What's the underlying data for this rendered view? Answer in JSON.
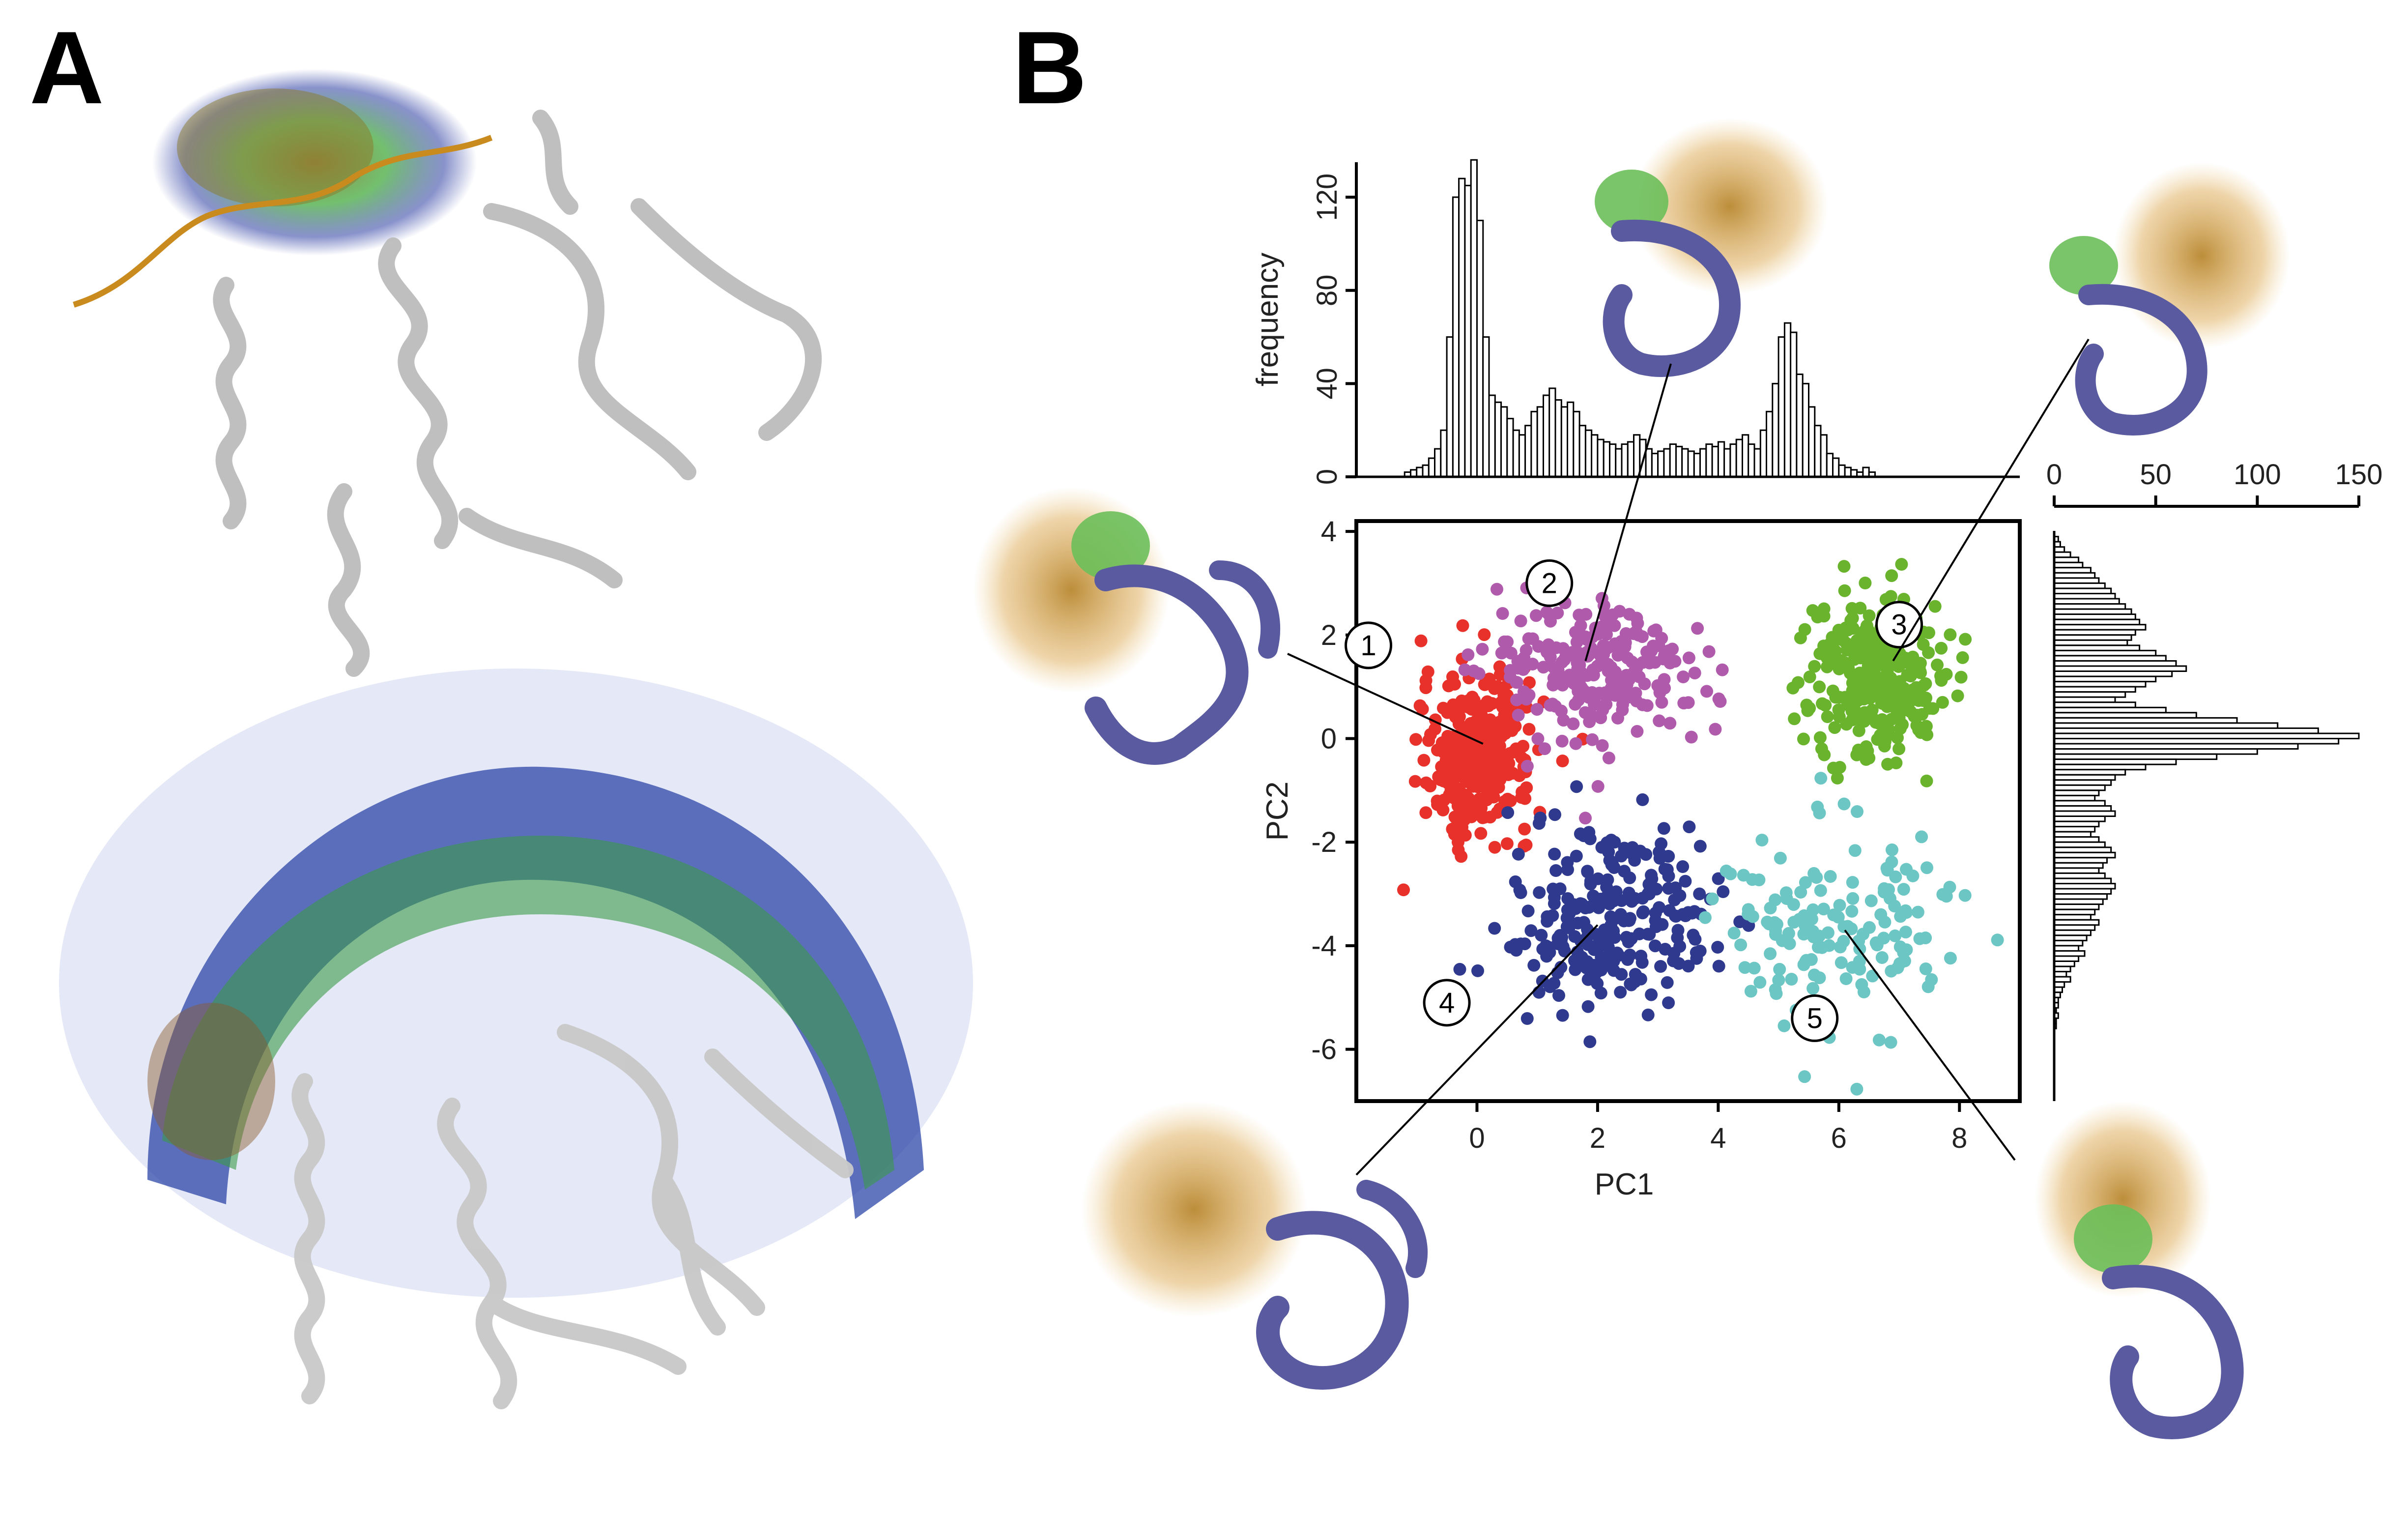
{
  "panels": {
    "a_label": "A",
    "b_label": "B"
  },
  "colors": {
    "cluster1": "#e8312a",
    "cluster2": "#b05aac",
    "cluster3": "#6ab42d",
    "cluster4": "#2f3a8f",
    "cluster5": "#6cc6c4",
    "protein_gray": "#d9d9d9",
    "purple_protein": "#5a5aa0",
    "peptide_orange": "#c98a1e",
    "density_green": "#4fb04a",
    "density_blue": "#3a4aa8"
  },
  "chart_data": [
    {
      "type": "scatter",
      "xlabel": "PC1",
      "ylabel": "PC2",
      "xlim": [
        -2,
        9
      ],
      "ylim": [
        -7,
        4.2
      ],
      "xticks": [
        "0",
        "2",
        "4",
        "6",
        "8"
      ],
      "yticks": [
        "4",
        "2",
        "0",
        "-2",
        "-4",
        "-6"
      ],
      "grid": false,
      "clusters": [
        {
          "label": "1",
          "color": "#e8312a",
          "center": [
            0.0,
            -0.3
          ],
          "spread": [
            0.45,
            0.75
          ],
          "n": 330
        },
        {
          "label": "2",
          "color": "#b05aac",
          "center": [
            2.0,
            1.3
          ],
          "spread": [
            0.9,
            0.7
          ],
          "n": 240
        },
        {
          "label": "3",
          "color": "#6ab42d",
          "center": [
            6.6,
            1.2
          ],
          "spread": [
            0.55,
            0.75
          ],
          "n": 300
        },
        {
          "label": "4",
          "color": "#2f3a8f",
          "center": [
            2.2,
            -3.5
          ],
          "spread": [
            0.85,
            0.85
          ],
          "n": 260
        },
        {
          "label": "5",
          "color": "#6cc6c4",
          "center": [
            6.0,
            -3.6
          ],
          "spread": [
            0.9,
            1.0
          ],
          "n": 150
        }
      ]
    },
    {
      "type": "bar",
      "orientation": "vertical",
      "ylabel": "frequency",
      "xlim": [
        -2,
        9
      ],
      "ylim": [
        0,
        135
      ],
      "yticks": [
        "0",
        "40",
        "80",
        "120"
      ],
      "bin_centers": [
        -1.15,
        -1.05,
        -0.95,
        -0.85,
        -0.75,
        -0.65,
        -0.55,
        -0.45,
        -0.35,
        -0.25,
        -0.15,
        -0.05,
        0.05,
        0.15,
        0.25,
        0.35,
        0.45,
        0.55,
        0.65,
        0.75,
        0.85,
        0.95,
        1.05,
        1.15,
        1.25,
        1.35,
        1.45,
        1.55,
        1.65,
        1.75,
        1.85,
        1.95,
        2.05,
        2.15,
        2.25,
        2.35,
        2.45,
        2.55,
        2.65,
        2.75,
        2.85,
        2.95,
        3.05,
        3.15,
        3.25,
        3.35,
        3.45,
        3.55,
        3.65,
        3.75,
        3.85,
        3.95,
        4.05,
        4.15,
        4.25,
        4.35,
        4.45,
        4.55,
        4.65,
        4.75,
        4.85,
        4.95,
        5.05,
        5.15,
        5.25,
        5.35,
        5.45,
        5.55,
        5.65,
        5.75,
        5.85,
        5.95,
        6.05,
        6.15,
        6.25,
        6.35,
        6.45,
        6.55,
        6.65,
        6.75,
        6.85,
        6.95,
        7.05,
        7.15,
        7.25,
        7.35,
        7.45,
        7.55,
        7.65,
        7.75,
        7.85,
        7.95,
        8.05,
        8.15,
        8.25,
        8.35
      ],
      "values": [
        2,
        3,
        4,
        5,
        8,
        12,
        20,
        60,
        120,
        128,
        125,
        136,
        110,
        60,
        35,
        32,
        30,
        25,
        20,
        18,
        22,
        28,
        30,
        35,
        38,
        33,
        30,
        32,
        28,
        22,
        20,
        18,
        16,
        15,
        14,
        12,
        14,
        15,
        18,
        16,
        12,
        10,
        11,
        12,
        14,
        13,
        12,
        11,
        10,
        12,
        14,
        13,
        15,
        12,
        14,
        16,
        18,
        14,
        12,
        20,
        28,
        40,
        60,
        66,
        62,
        44,
        40,
        30,
        22,
        18,
        10,
        8,
        5,
        4,
        3,
        2,
        4,
        2,
        0,
        0,
        0,
        0,
        0,
        0,
        0,
        0,
        0,
        0,
        0,
        0,
        0,
        0,
        0,
        0,
        0,
        0
      ]
    },
    {
      "type": "bar",
      "orientation": "horizontal",
      "xlim": [
        0,
        150
      ],
      "xticks": [
        "0",
        "50",
        "100",
        "150"
      ],
      "ylim": [
        -7,
        4.2
      ],
      "bin_centers": [
        3.85,
        3.75,
        3.65,
        3.55,
        3.45,
        3.35,
        3.25,
        3.15,
        3.05,
        2.95,
        2.85,
        2.75,
        2.65,
        2.55,
        2.45,
        2.35,
        2.25,
        2.15,
        2.05,
        1.95,
        1.85,
        1.75,
        1.65,
        1.55,
        1.45,
        1.35,
        1.25,
        1.15,
        1.05,
        0.95,
        0.85,
        0.75,
        0.65,
        0.55,
        0.45,
        0.35,
        0.25,
        0.15,
        0.05,
        -0.05,
        -0.15,
        -0.25,
        -0.35,
        -0.45,
        -0.55,
        -0.65,
        -0.75,
        -0.85,
        -0.95,
        -1.05,
        -1.15,
        -1.25,
        -1.35,
        -1.45,
        -1.55,
        -1.65,
        -1.75,
        -1.85,
        -1.95,
        -2.05,
        -2.15,
        -2.25,
        -2.35,
        -2.45,
        -2.55,
        -2.65,
        -2.75,
        -2.85,
        -2.95,
        -3.05,
        -3.15,
        -3.25,
        -3.35,
        -3.45,
        -3.55,
        -3.65,
        -3.75,
        -3.85,
        -3.95,
        -4.05,
        -4.15,
        -4.25,
        -4.35,
        -4.45,
        -4.55,
        -4.65,
        -4.75,
        -4.85,
        -4.95,
        -5.05,
        -5.15,
        -5.25,
        -5.35,
        -5.45,
        -5.55,
        -5.65,
        -5.75,
        -5.85,
        -5.95,
        -6.05,
        -6.15,
        -6.25,
        -6.35
      ],
      "values": [
        2,
        3,
        5,
        8,
        12,
        14,
        18,
        20,
        22,
        25,
        28,
        30,
        32,
        35,
        38,
        40,
        42,
        45,
        40,
        38,
        36,
        42,
        50,
        55,
        60,
        65,
        58,
        50,
        45,
        40,
        35,
        30,
        40,
        55,
        70,
        90,
        110,
        130,
        150,
        140,
        120,
        100,
        80,
        60,
        45,
        35,
        30,
        28,
        25,
        22,
        20,
        25,
        28,
        30,
        25,
        22,
        20,
        18,
        22,
        25,
        28,
        30,
        26,
        24,
        22,
        25,
        28,
        30,
        28,
        26,
        24,
        22,
        20,
        18,
        22,
        20,
        18,
        16,
        14,
        12,
        15,
        12,
        10,
        8,
        6,
        8,
        5,
        4,
        3,
        2,
        2,
        1,
        2,
        1,
        1,
        0,
        0,
        0,
        0,
        0,
        0,
        0,
        0
      ]
    }
  ]
}
